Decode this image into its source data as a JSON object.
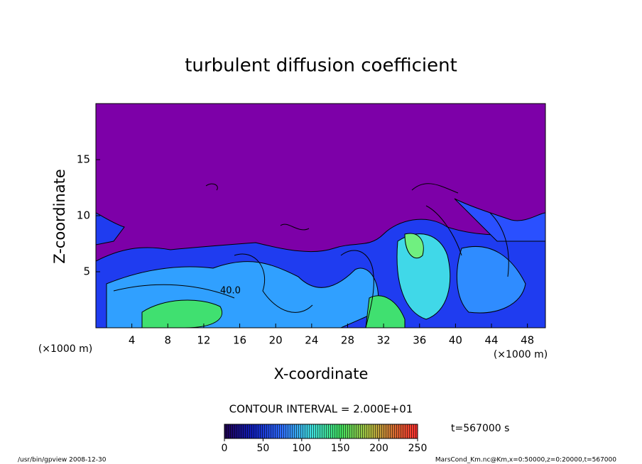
{
  "chart_data": {
    "type": "contour",
    "title": "turbulent diffusion coefficient",
    "x_label": "X-coordinate",
    "y_label": "Z-coordinate",
    "x_unit": "(×1000 m)",
    "y_unit": "(×1000 m)",
    "xlim": [
      0,
      50
    ],
    "xticks": [
      4,
      8,
      12,
      16,
      20,
      24,
      28,
      32,
      36,
      40,
      44,
      48
    ],
    "ylim": [
      0,
      20
    ],
    "yticks": [
      5,
      10,
      15
    ],
    "contour_label": "40.0",
    "contour_interval": "CONTOUR INTERVAL = 2.000E+01",
    "clim": [
      0,
      250
    ],
    "cticks": [
      0,
      50,
      100,
      150,
      200,
      250
    ],
    "time_label": "t=567000 s",
    "footer_left": "/usr/bin/gpview   2008-12-30",
    "footer_right": "MarsCond_Km.nc@Km,x=0:50000,z=0:20000,t=567000"
  }
}
